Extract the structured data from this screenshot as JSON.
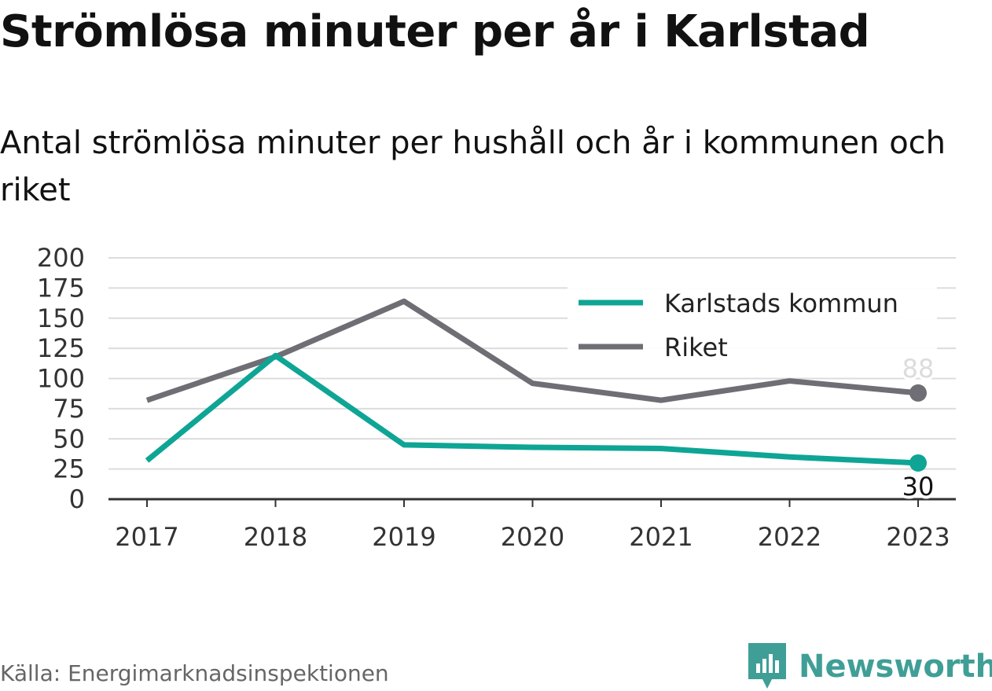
{
  "title": "Strömlösa minuter per år i Karlstad",
  "subtitle": "Antal strömlösa minuter per hushåll och år i kommunen och riket",
  "source": "Källa: Energimarknadsinspektionen",
  "brand": {
    "name": "Newsworthy",
    "icon": "newsworthy-logo-icon",
    "color": "#3f9f96"
  },
  "chart_data": {
    "type": "line",
    "x": [
      "2017",
      "2018",
      "2019",
      "2020",
      "2021",
      "2022",
      "2023"
    ],
    "ylim": [
      0,
      200
    ],
    "yticks": [
      0,
      25,
      50,
      75,
      100,
      125,
      150,
      175,
      200
    ],
    "grid": true,
    "legend_position": "top-right",
    "series": [
      {
        "name": "Karlstads kommun",
        "color": "#0ea595",
        "values": [
          32,
          119,
          45,
          43,
          42,
          35,
          30
        ],
        "end_label": "30"
      },
      {
        "name": "Riket",
        "color": "#6f6e74",
        "values": [
          82,
          118,
          164,
          96,
          82,
          98,
          88
        ],
        "end_label": "88"
      }
    ]
  }
}
